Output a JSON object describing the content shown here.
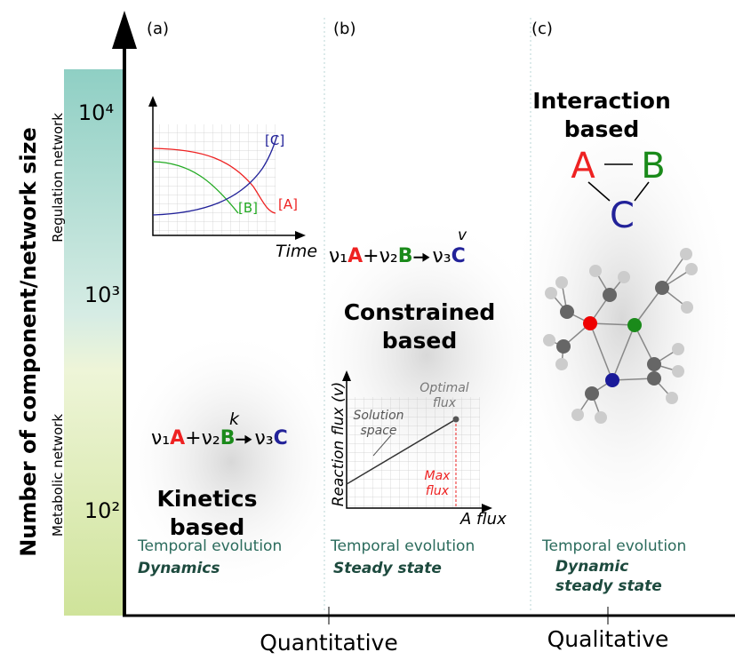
{
  "y_axis": {
    "label": "Number of component/network size",
    "ticks": [
      "10⁴",
      "10³",
      "10²"
    ],
    "bands": [
      "Regulation network",
      "Metabolic network"
    ]
  },
  "x_axis": {
    "labels": [
      "Quantitative",
      "Qualitative"
    ]
  },
  "panels": [
    {
      "label": "(a)",
      "title": [
        "Kinetics",
        "based"
      ],
      "equation": {
        "terms": [
          "ν₁",
          "A",
          "+ν₂",
          "B",
          "ν₃",
          "C"
        ],
        "rate": "k"
      },
      "inset": {
        "x_label": "Time",
        "curves": [
          "[C]",
          "[B]",
          "[A]"
        ]
      },
      "note": "Temporal evolution",
      "mode": [
        "Dynamics"
      ]
    },
    {
      "label": "(b)",
      "title": [
        "Constrained",
        "based"
      ],
      "equation": {
        "terms": [
          "ν₁",
          "A",
          "+ν₂",
          "B",
          "ν₃",
          "C"
        ],
        "rate": "v"
      },
      "inset": {
        "y_label": "Reaction flux (v)",
        "x_label": "A flux",
        "region": [
          "Solution",
          "space"
        ],
        "optimum": [
          "Optimal",
          "flux"
        ],
        "max": [
          "Max",
          "flux"
        ]
      },
      "note": "Temporal evolution",
      "mode": [
        "Steady state"
      ]
    },
    {
      "label": "(c)",
      "title": [
        "Interaction",
        "based"
      ],
      "nodes": [
        "A",
        "B",
        "C"
      ],
      "note": "Temporal evolution",
      "mode": [
        "Dynamic",
        "steady state"
      ]
    }
  ]
}
